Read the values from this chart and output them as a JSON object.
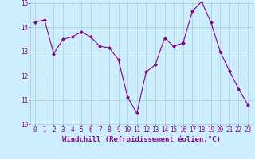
{
  "x": [
    0,
    1,
    2,
    3,
    4,
    5,
    6,
    7,
    8,
    9,
    10,
    11,
    12,
    13,
    14,
    15,
    16,
    17,
    18,
    19,
    20,
    21,
    22,
    23
  ],
  "y": [
    14.2,
    14.3,
    12.9,
    13.5,
    13.6,
    13.8,
    13.6,
    13.2,
    13.15,
    12.65,
    11.1,
    10.45,
    12.15,
    12.45,
    13.55,
    13.2,
    13.35,
    14.65,
    15.05,
    14.2,
    13.0,
    12.2,
    11.45,
    10.8
  ],
  "line_color": "#880088",
  "marker": "D",
  "marker_size": 2,
  "bg_color": "#cceeff",
  "grid_color": "#aacccc",
  "xlabel": "Windchill (Refroidissement éolien,°C)",
  "ylim": [
    10,
    15
  ],
  "xlim_min": -0.5,
  "xlim_max": 23.5,
  "yticks": [
    10,
    11,
    12,
    13,
    14,
    15
  ],
  "xticks": [
    0,
    1,
    2,
    3,
    4,
    5,
    6,
    7,
    8,
    9,
    10,
    11,
    12,
    13,
    14,
    15,
    16,
    17,
    18,
    19,
    20,
    21,
    22,
    23
  ],
  "tick_color": "#880088",
  "label_color": "#880088",
  "xlabel_fontsize": 6.5,
  "tick_fontsize": 5.5
}
